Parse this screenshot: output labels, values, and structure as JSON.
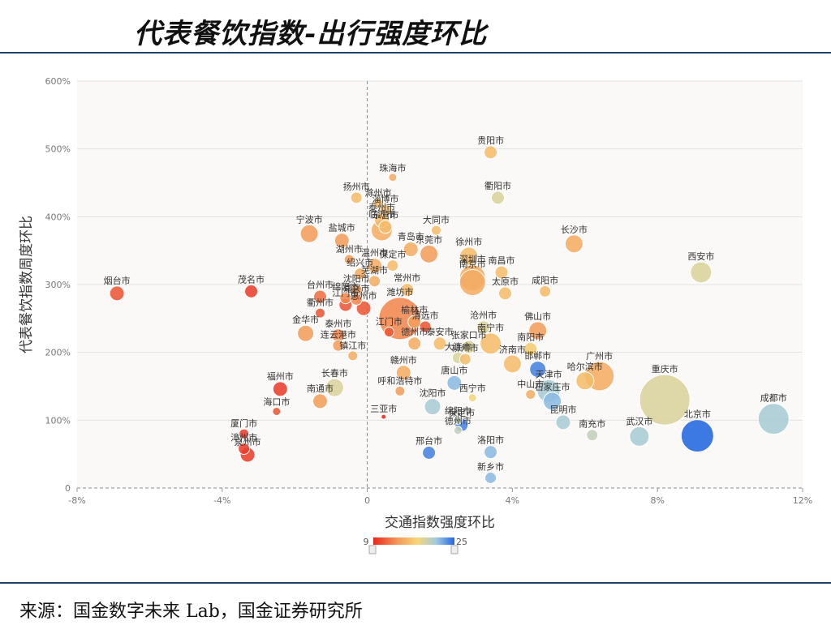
{
  "title": "代表餐饮指数-出行强度环比",
  "source": "来源：国金数字未来 Lab，国金证券研究所",
  "chart_data": {
    "type": "scatter",
    "xlabel": "交通指数强度环比",
    "ylabel": "代表餐饮指数周度环比",
    "xlim": [
      -8,
      12
    ],
    "ylim": [
      0,
      600
    ],
    "xticks": [
      "-8%",
      "-4%",
      "0",
      "4%",
      "8%",
      "12%"
    ],
    "xtick_values": [
      -8,
      -4,
      0,
      4,
      8,
      12
    ],
    "yticks": [
      "0",
      "100%",
      "200%",
      "300%",
      "400%",
      "500%",
      "600%"
    ],
    "ytick_values": [
      0,
      100,
      200,
      300,
      400,
      500,
      600
    ],
    "grid": "horizontal",
    "visual_map": {
      "min": 9,
      "max": 25,
      "colors": [
        "#e8261e",
        "#f39a5a",
        "#f6d77a",
        "#9ec9e2",
        "#2266e0"
      ]
    },
    "points": [
      {
        "name": "贵阳市",
        "x": 3.4,
        "y": 495,
        "v": 16,
        "r": 8
      },
      {
        "name": "珠海市",
        "x": 0.7,
        "y": 458,
        "v": 15,
        "r": 5
      },
      {
        "name": "衢阳市",
        "x": 3.6,
        "y": 428,
        "v": 19,
        "r": 8
      },
      {
        "name": "扬州市",
        "x": -0.3,
        "y": 428,
        "v": 16,
        "r": 7
      },
      {
        "name": "滁州市",
        "x": 0.3,
        "y": 420,
        "v": 16,
        "r": 6
      },
      {
        "name": "淄博市",
        "x": 0.5,
        "y": 410,
        "v": 16,
        "r": 7
      },
      {
        "name": "泰州市",
        "x": 0.4,
        "y": 395,
        "v": 16,
        "r": 9
      },
      {
        "name": "东营市",
        "x": 0.5,
        "y": 385,
        "v": 16,
        "r": 8
      },
      {
        "name": "临沂市",
        "x": 0.4,
        "y": 380,
        "v": 15,
        "r": 13
      },
      {
        "name": "大同市",
        "x": 1.9,
        "y": 380,
        "v": 16,
        "r": 6
      },
      {
        "name": "宁波市",
        "x": -1.6,
        "y": 375,
        "v": 14,
        "r": 11
      },
      {
        "name": "盐城市",
        "x": -0.7,
        "y": 365,
        "v": 14,
        "r": 9
      },
      {
        "name": "长沙市",
        "x": 5.7,
        "y": 360,
        "v": 15,
        "r": 11
      },
      {
        "name": "青岛市",
        "x": 1.2,
        "y": 352,
        "v": 15,
        "r": 9
      },
      {
        "name": "东莞市",
        "x": 1.7,
        "y": 345,
        "v": 14,
        "r": 11
      },
      {
        "name": "徐州市",
        "x": 2.8,
        "y": 342,
        "v": 16,
        "r": 11
      },
      {
        "name": "湖州市",
        "x": -0.5,
        "y": 337,
        "v": 14,
        "r": 6
      },
      {
        "name": "温州市",
        "x": 0.2,
        "y": 328,
        "v": 15,
        "r": 9
      },
      {
        "name": "保定市",
        "x": 0.7,
        "y": 328,
        "v": 16,
        "r": 7
      },
      {
        "name": "西安市",
        "x": 9.2,
        "y": 318,
        "v": 19,
        "r": 13
      },
      {
        "name": "南昌市",
        "x": 3.7,
        "y": 318,
        "v": 16,
        "r": 8
      },
      {
        "name": "绍兴市",
        "x": -0.2,
        "y": 316,
        "v": 15,
        "r": 7
      },
      {
        "name": "深圳市",
        "x": 2.9,
        "y": 310,
        "v": 15,
        "r": 16
      },
      {
        "name": "南京市",
        "x": 2.9,
        "y": 303,
        "v": 15,
        "r": 16
      },
      {
        "name": "芜湖市",
        "x": 0.2,
        "y": 305,
        "v": 15,
        "r": 7
      },
      {
        "name": "常州市",
        "x": 1.1,
        "y": 292,
        "v": 16,
        "r": 8
      },
      {
        "name": "咸阳市",
        "x": 4.9,
        "y": 290,
        "v": 16,
        "r": 7
      },
      {
        "name": "太原市",
        "x": 3.8,
        "y": 287,
        "v": 16,
        "r": 8
      },
      {
        "name": "烟台市",
        "x": -6.9,
        "y": 287,
        "v": 11,
        "r": 9
      },
      {
        "name": "茂名市",
        "x": -3.2,
        "y": 290,
        "v": 10,
        "r": 8
      },
      {
        "name": "沈阳市",
        "x": -0.3,
        "y": 292,
        "v": 14,
        "r": 7
      },
      {
        "name": "台州市",
        "x": -1.3,
        "y": 282,
        "v": 12,
        "r": 8
      },
      {
        "name": "绵阳市",
        "x": -0.6,
        "y": 280,
        "v": 13,
        "r": 7
      },
      {
        "name": "嘉兴市",
        "x": -0.3,
        "y": 278,
        "v": 13,
        "r": 7
      },
      {
        "name": "江门市",
        "x": -0.6,
        "y": 270,
        "v": 11,
        "r": 8
      },
      {
        "name": "惠州市",
        "x": -0.1,
        "y": 265,
        "v": 11,
        "r": 9
      },
      {
        "name": "衢州市",
        "x": -1.3,
        "y": 258,
        "v": 11,
        "r": 6
      },
      {
        "name": "潍坊市",
        "x": 0.9,
        "y": 250,
        "v": 13,
        "r": 26
      },
      {
        "name": "榆林市",
        "x": 1.3,
        "y": 245,
        "v": 14,
        "r": 8
      },
      {
        "name": "清远市",
        "x": 1.6,
        "y": 238,
        "v": 11,
        "r": 7
      },
      {
        "name": "沧州市",
        "x": 3.2,
        "y": 237,
        "v": 19,
        "r": 8
      },
      {
        "name": "佛山市",
        "x": 4.7,
        "y": 232,
        "v": 14,
        "r": 11
      },
      {
        "name": "金华市",
        "x": -1.7,
        "y": 228,
        "v": 14,
        "r": 10
      },
      {
        "name": "泰州市",
        "x": -0.8,
        "y": 225,
        "v": 13,
        "r": 8
      },
      {
        "name": "江门市",
        "x": 0.6,
        "y": 230,
        "v": 11,
        "r": 6
      },
      {
        "name": "德州市",
        "x": 1.3,
        "y": 213,
        "v": 15,
        "r": 8
      },
      {
        "name": "泰安市",
        "x": 2.0,
        "y": 213,
        "v": 16,
        "r": 8
      },
      {
        "name": "张家口市",
        "x": 2.8,
        "y": 208,
        "v": 19,
        "r": 8
      },
      {
        "name": "南宁市",
        "x": 3.4,
        "y": 213,
        "v": 16,
        "r": 13
      },
      {
        "name": "南阳市",
        "x": 4.5,
        "y": 205,
        "v": 17,
        "r": 8
      },
      {
        "name": "连云港市",
        "x": -0.8,
        "y": 210,
        "v": 14,
        "r": 7
      },
      {
        "name": "镇江市",
        "x": -0.4,
        "y": 195,
        "v": 15,
        "r": 6
      },
      {
        "name": "大连市",
        "x": 2.5,
        "y": 192,
        "v": 19,
        "r": 7
      },
      {
        "name": "柳州市",
        "x": 2.7,
        "y": 190,
        "v": 16,
        "r": 7
      },
      {
        "name": "济南市",
        "x": 4.0,
        "y": 183,
        "v": 16,
        "r": 11
      },
      {
        "name": "邯郸市",
        "x": 4.7,
        "y": 175,
        "v": 24,
        "r": 10
      },
      {
        "name": "赣州市",
        "x": 1.0,
        "y": 170,
        "v": 15,
        "r": 9
      },
      {
        "name": "哈尔滨市",
        "x": 6.0,
        "y": 158,
        "v": 16,
        "r": 11
      },
      {
        "name": "广州市",
        "x": 6.4,
        "y": 165,
        "v": 15,
        "r": 18
      },
      {
        "name": "唐山市",
        "x": 2.4,
        "y": 155,
        "v": 22,
        "r": 9
      },
      {
        "name": "长春市",
        "x": -0.9,
        "y": 148,
        "v": 19,
        "r": 11
      },
      {
        "name": "福州市",
        "x": -2.4,
        "y": 146,
        "v": 10,
        "r": 9
      },
      {
        "name": "中山市",
        "x": 4.5,
        "y": 138,
        "v": 15,
        "r": 6
      },
      {
        "name": "天津市",
        "x": 5.0,
        "y": 143,
        "v": 21,
        "r": 14
      },
      {
        "name": "石家庄市",
        "x": 5.1,
        "y": 128,
        "v": 22,
        "r": 11
      },
      {
        "name": "呼和浩特市",
        "x": 0.9,
        "y": 143,
        "v": 14,
        "r": 6
      },
      {
        "name": "西宁市",
        "x": 2.9,
        "y": 133,
        "v": 18,
        "r": 5
      },
      {
        "name": "南通市",
        "x": -1.3,
        "y": 128,
        "v": 14,
        "r": 9
      },
      {
        "name": "重庆市",
        "x": 8.2,
        "y": 130,
        "v": 19,
        "r": 31
      },
      {
        "name": "沈阳市",
        "x": 1.8,
        "y": 120,
        "v": 21,
        "r": 10
      },
      {
        "name": "海口市",
        "x": -2.5,
        "y": 113,
        "v": 11,
        "r": 5
      },
      {
        "name": "成都市",
        "x": 11.2,
        "y": 102,
        "v": 21,
        "r": 19
      },
      {
        "name": "三亚市",
        "x": 0.45,
        "y": 105,
        "v": 9,
        "r": 3
      },
      {
        "name": "绵阳市",
        "x": 2.5,
        "y": 100,
        "v": 20,
        "r": 5
      },
      {
        "name": "保定市",
        "x": 2.6,
        "y": 93,
        "v": 24,
        "r": 8
      },
      {
        "name": "德州市",
        "x": 2.5,
        "y": 85,
        "v": 20,
        "r": 5
      },
      {
        "name": "昆明市",
        "x": 5.4,
        "y": 97,
        "v": 21,
        "r": 9
      },
      {
        "name": "南充市",
        "x": 6.2,
        "y": 78,
        "v": 20,
        "r": 7
      },
      {
        "name": "武汉市",
        "x": 7.5,
        "y": 76,
        "v": 21,
        "r": 12
      },
      {
        "name": "北京市",
        "x": 9.1,
        "y": 77,
        "v": 25,
        "r": 20
      },
      {
        "name": "厦门市",
        "x": -3.4,
        "y": 80,
        "v": 10,
        "r": 6
      },
      {
        "name": "漳州市",
        "x": -3.4,
        "y": 58,
        "v": 10,
        "r": 7
      },
      {
        "name": "泉州市",
        "x": -3.3,
        "y": 49,
        "v": 10,
        "r": 9
      },
      {
        "name": "邢台市",
        "x": 1.7,
        "y": 52,
        "v": 24,
        "r": 8
      },
      {
        "name": "洛阳市",
        "x": 3.4,
        "y": 53,
        "v": 22,
        "r": 8
      },
      {
        "name": "新乡市",
        "x": 3.4,
        "y": 15,
        "v": 22,
        "r": 7
      }
    ]
  }
}
